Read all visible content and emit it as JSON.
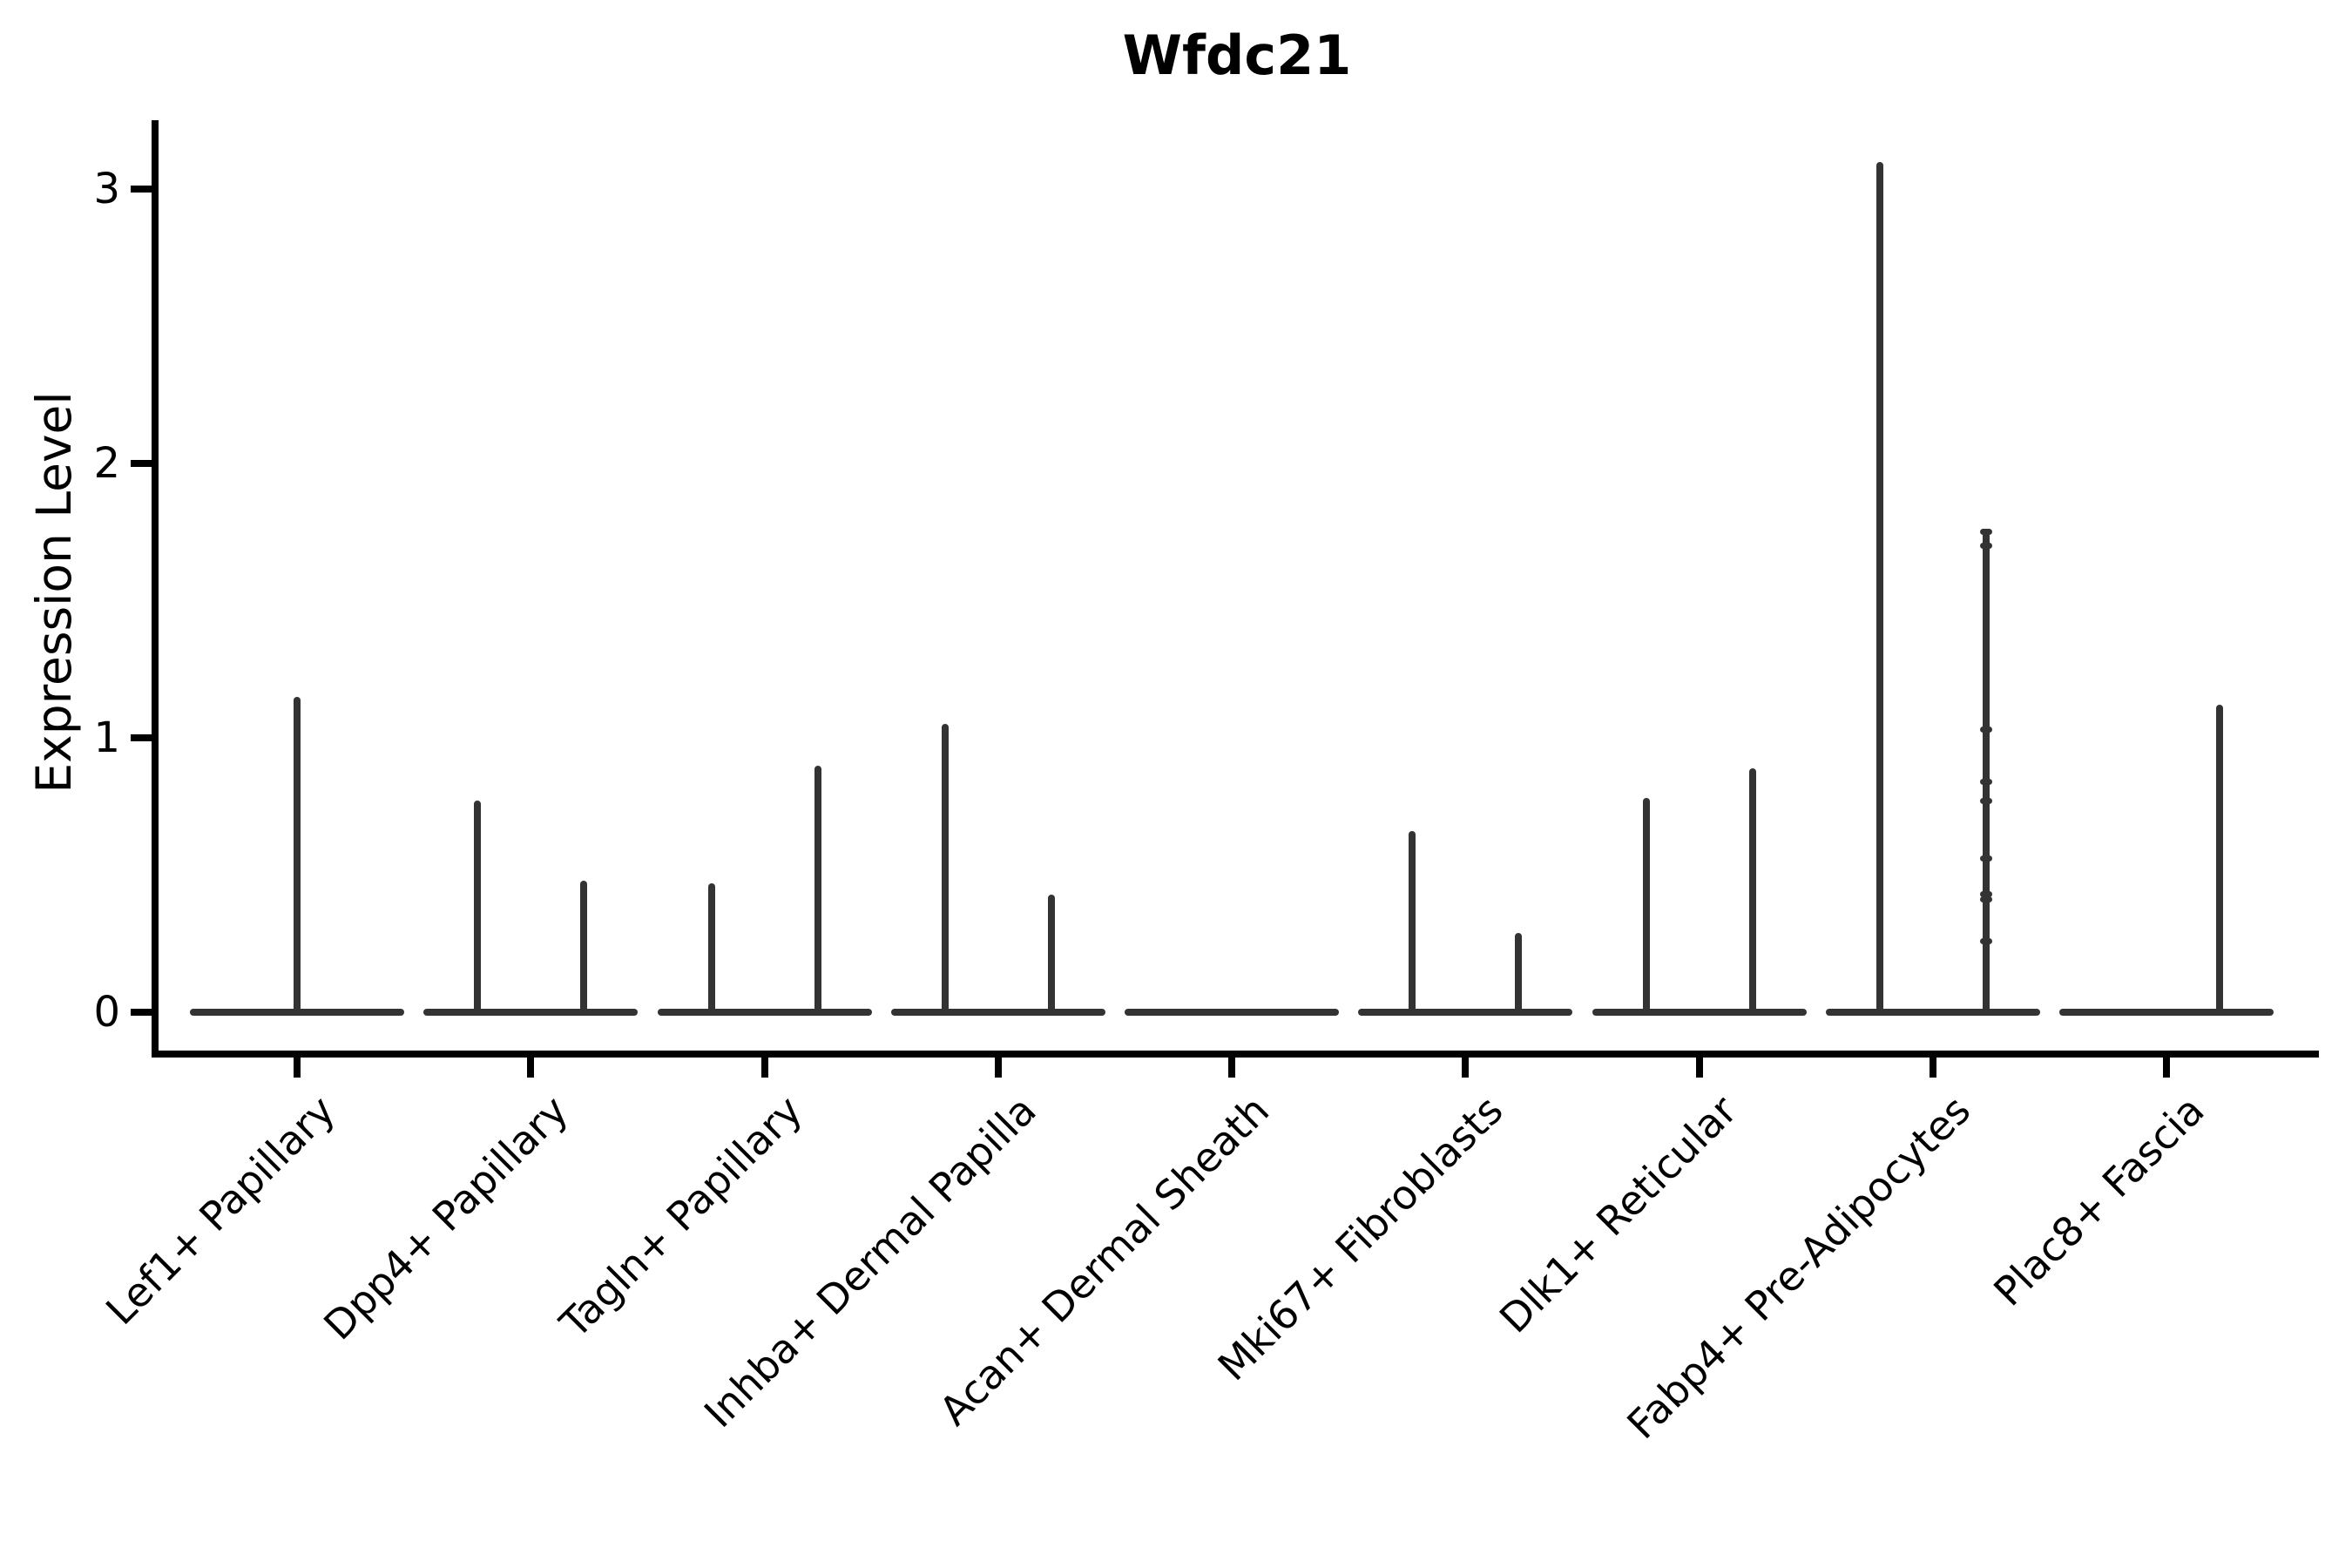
{
  "figure": {
    "title": "Wfdc21",
    "ylabel": "Expression Level"
  },
  "chart_data": {
    "type": "violin",
    "title": "Wfdc21",
    "xlabel": "",
    "ylabel": "Expression Level",
    "ylim": [
      0,
      3.25
    ],
    "yticks": [
      0,
      1,
      2,
      3
    ],
    "grid": false,
    "legend_position": "none",
    "colors": {
      "violin": "#333333",
      "axis": "#000000",
      "text": "#000000",
      "background": "#ffffff"
    },
    "categories": [
      "Lef1+ Papillary",
      "Dpp4+ Papillary",
      "Tagln+ Papillary",
      "Inhba+ Dermal Papilla",
      "Acan+ Dermal Sheath",
      "Mki67+ Fibroblasts",
      "Dlk1+ Reticular",
      "Fabp4+ Pre-Adipocytes",
      "Plac8+ Fascia"
    ],
    "groups": [
      {
        "category": "Lef1+ Papillary",
        "violins": [
          {
            "pos": "center",
            "max": 1.15
          }
        ]
      },
      {
        "category": "Dpp4+ Papillary",
        "violins": [
          {
            "pos": "left",
            "max": 0.77
          },
          {
            "pos": "right",
            "max": 0.48
          }
        ]
      },
      {
        "category": "Tagln+ Papillary",
        "violins": [
          {
            "pos": "left",
            "max": 0.47
          },
          {
            "pos": "right",
            "max": 0.9
          }
        ]
      },
      {
        "category": "Inhba+ Dermal Papilla",
        "violins": [
          {
            "pos": "left",
            "max": 1.05
          },
          {
            "pos": "right",
            "max": 0.43
          }
        ]
      },
      {
        "category": "Acan+ Dermal Sheath",
        "violins": []
      },
      {
        "category": "Mki67+ Fibroblasts",
        "violins": [
          {
            "pos": "left",
            "max": 0.66
          },
          {
            "pos": "right",
            "max": 0.29
          }
        ]
      },
      {
        "category": "Dlk1+ Reticular",
        "violins": [
          {
            "pos": "left",
            "max": 0.78
          },
          {
            "pos": "right",
            "max": 0.89
          }
        ]
      },
      {
        "category": "Fabp4+ Pre-Adipocytes",
        "violins": [
          {
            "pos": "left",
            "max": 3.1
          },
          {
            "pos": "right",
            "max": 1.75,
            "points": [
              1.75,
              1.7,
              1.03,
              0.84,
              0.77,
              0.56,
              0.43,
              0.41,
              0.26
            ]
          }
        ]
      },
      {
        "category": "Plac8+ Fascia",
        "violins": [
          {
            "pos": "right",
            "max": 1.12
          }
        ]
      }
    ]
  }
}
